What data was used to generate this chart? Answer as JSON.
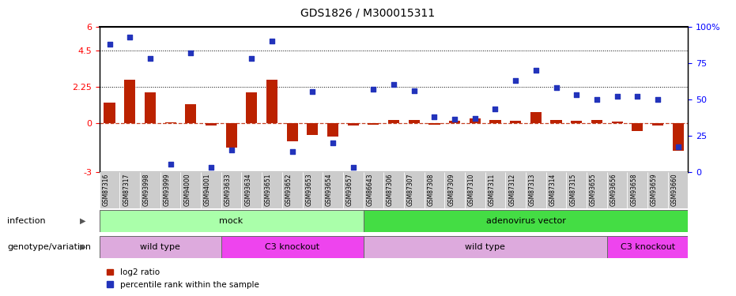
{
  "title": "GDS1826 / M300015311",
  "samples": [
    "GSM87316",
    "GSM87317",
    "GSM93998",
    "GSM93999",
    "GSM94000",
    "GSM94001",
    "GSM93633",
    "GSM93634",
    "GSM93651",
    "GSM93652",
    "GSM93653",
    "GSM93654",
    "GSM93657",
    "GSM86643",
    "GSM87306",
    "GSM87307",
    "GSM87308",
    "GSM87309",
    "GSM87310",
    "GSM87311",
    "GSM87312",
    "GSM87313",
    "GSM87314",
    "GSM87315",
    "GSM93655",
    "GSM93656",
    "GSM93658",
    "GSM93659",
    "GSM93660"
  ],
  "log2_ratio": [
    1.3,
    2.7,
    1.9,
    0.05,
    1.2,
    -0.15,
    -1.5,
    1.9,
    2.7,
    -1.1,
    -0.7,
    -0.8,
    -0.15,
    -0.1,
    0.2,
    0.2,
    -0.1,
    0.15,
    0.3,
    0.2,
    0.15,
    0.7,
    0.2,
    0.15,
    0.2,
    0.1,
    -0.5,
    -0.15,
    -1.7
  ],
  "percentile": [
    88,
    93,
    78,
    5,
    82,
    3,
    15,
    78,
    90,
    14,
    55,
    20,
    3,
    57,
    60,
    56,
    38,
    36,
    37,
    43,
    63,
    70,
    58,
    53,
    50,
    52,
    52,
    50,
    17
  ],
  "infection_groups": [
    {
      "label": "mock",
      "start": 0,
      "end": 13,
      "color": "#aaffaa"
    },
    {
      "label": "adenovirus vector",
      "start": 13,
      "end": 29,
      "color": "#44dd44"
    }
  ],
  "genotype_groups": [
    {
      "label": "wild type",
      "start": 0,
      "end": 6,
      "color": "#ddaadd"
    },
    {
      "label": "C3 knockout",
      "start": 6,
      "end": 13,
      "color": "#ee44ee"
    },
    {
      "label": "wild type",
      "start": 13,
      "end": 25,
      "color": "#ddaadd"
    },
    {
      "label": "C3 knockout",
      "start": 25,
      "end": 29,
      "color": "#ee44ee"
    }
  ],
  "ylim_left": [
    -3,
    6
  ],
  "ylim_right": [
    0,
    100
  ],
  "bar_color": "#BB2200",
  "dot_color": "#2233BB",
  "legend_label_bar": "log2 ratio",
  "legend_label_dot": "percentile rank within the sample",
  "infection_label": "infection",
  "genotype_label": "genotype/variation"
}
